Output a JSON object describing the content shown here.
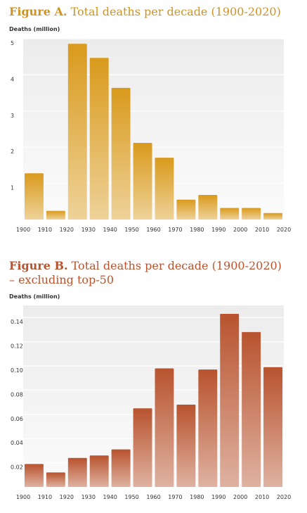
{
  "chart_data": [
    {
      "type": "bar",
      "title_prefix": "Figure A.",
      "title": "Total deaths per decade (1900-2020)",
      "title_line2": "",
      "ylabel": "Deaths (million)",
      "color": "#d99a1c",
      "ylim": [
        0,
        5.0
      ],
      "yticks": [
        1,
        2,
        3,
        4,
        5
      ],
      "ytick_labels": [
        "1",
        "2",
        "3",
        "4",
        "5"
      ],
      "x_tick_labels": [
        "1900",
        "1910",
        "1920",
        "1930",
        "1940",
        "1950",
        "1960",
        "1970",
        "1980",
        "1990",
        "2000",
        "2010",
        "2020"
      ],
      "values": [
        1.28,
        0.24,
        4.86,
        4.47,
        3.64,
        2.12,
        1.71,
        0.55,
        0.68,
        0.32,
        0.32,
        0.18
      ]
    },
    {
      "type": "bar",
      "title_prefix": "Figure B.",
      "title": "Total deaths per decade (1900-2020)",
      "title_line2": "– excluding top-50",
      "ylabel": "Deaths (million)",
      "color": "#b8532e",
      "ylim": [
        0,
        0.15
      ],
      "yticks": [
        0.02,
        0.04,
        0.06,
        0.08,
        0.1,
        0.12,
        0.14
      ],
      "ytick_labels": [
        "0.02",
        "0.04",
        "0.06",
        "0.08",
        "0.10",
        "0.12",
        "0.14"
      ],
      "x_tick_labels": [
        "1900",
        "1910",
        "1920",
        "1930",
        "1940",
        "1950",
        "1960",
        "1970",
        "1980",
        "1990",
        "2000",
        "2010",
        "2020"
      ],
      "values": [
        0.019,
        0.012,
        0.024,
        0.026,
        0.031,
        0.065,
        0.098,
        0.068,
        0.097,
        0.143,
        0.128,
        0.099
      ]
    }
  ]
}
